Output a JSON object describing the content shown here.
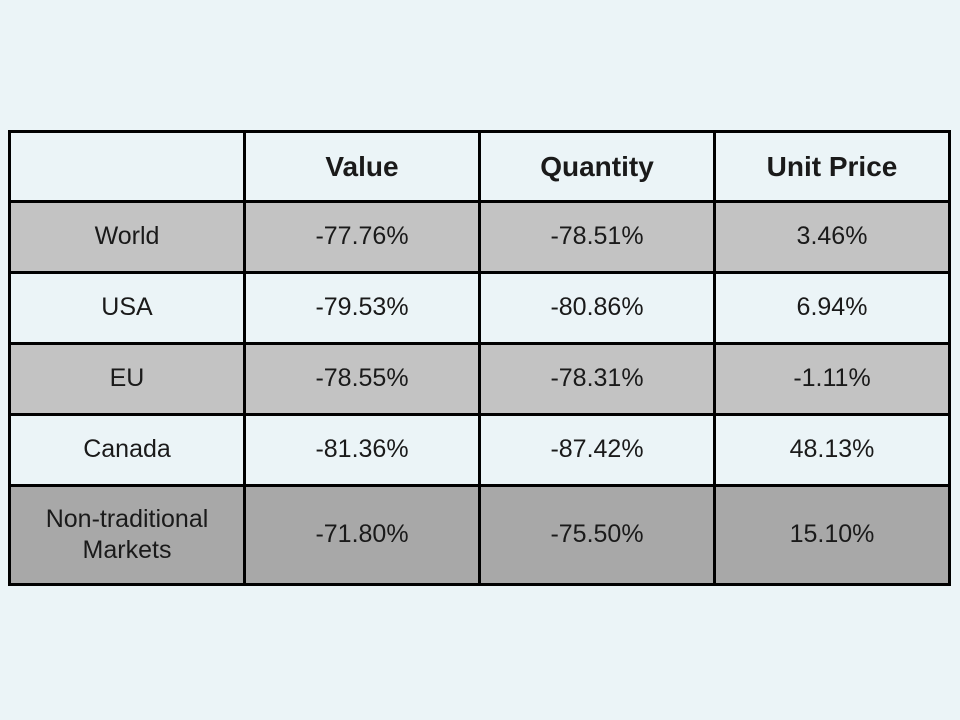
{
  "chart_data": {
    "type": "table",
    "columns": [
      "",
      "Value",
      "Quantity",
      "Unit Price"
    ],
    "rows": [
      [
        "World",
        "-77.76%",
        "-78.51%",
        "3.46%"
      ],
      [
        "USA",
        "-79.53%",
        "-80.86%",
        "6.94%"
      ],
      [
        "EU",
        "-78.55%",
        "-78.31%",
        "-1.11%"
      ],
      [
        "Canada",
        "-81.36%",
        "-87.42%",
        "48.13%"
      ],
      [
        "Non-traditional Markets",
        "-71.80%",
        "-75.50%",
        "15.10%"
      ]
    ],
    "categories": [
      "World",
      "USA",
      "EU",
      "Canada",
      "Non-traditional Markets"
    ],
    "series": [
      {
        "name": "Value",
        "values": [
          -77.76,
          -79.53,
          -78.55,
          -81.36,
          -71.8
        ]
      },
      {
        "name": "Quantity",
        "values": [
          -78.51,
          -80.86,
          -78.31,
          -87.42,
          -75.5
        ]
      },
      {
        "name": "Unit Price",
        "values": [
          3.46,
          6.94,
          -1.11,
          48.13,
          15.1
        ]
      }
    ],
    "layout": {
      "legend": "none",
      "grid": "full-borders"
    }
  },
  "colors": {
    "slide_background": "#EBF4F7",
    "header_background": "#EBF4F7",
    "row_shade_medium": "#C3C3C3",
    "row_shade_light": "#EBF4F7",
    "row_shade_dark": "#A8A8A8",
    "table_border": "#000000",
    "text": "#1A1A1A"
  }
}
